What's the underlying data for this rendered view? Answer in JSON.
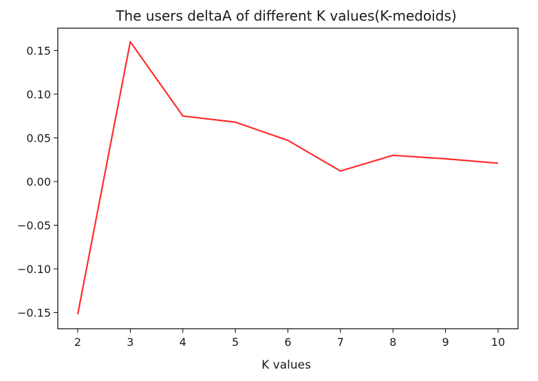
{
  "chart_data": {
    "type": "line",
    "title": "The users deltaA of different K values(K-medoids)",
    "xlabel": "K values",
    "ylabel": "",
    "xlim": [
      1.62,
      10.38
    ],
    "ylim": [
      -0.1685,
      0.1755
    ],
    "xticks": [
      2,
      3,
      4,
      5,
      6,
      7,
      8,
      9,
      10
    ],
    "xtick_labels": [
      "2",
      "3",
      "4",
      "5",
      "6",
      "7",
      "8",
      "9",
      "10"
    ],
    "yticks": [
      -0.15,
      -0.1,
      -0.05,
      0.0,
      0.05,
      0.1,
      0.15
    ],
    "ytick_labels": [
      "−0.15",
      "−0.10",
      "−0.05",
      "0.00",
      "0.05",
      "0.10",
      "0.15"
    ],
    "grid": false,
    "series": [
      {
        "color": "#ff2a2a",
        "x": [
          2,
          3,
          4,
          5,
          6,
          7,
          8,
          9,
          10
        ],
        "values": [
          -0.152,
          0.16,
          0.075,
          0.068,
          0.047,
          0.012,
          0.03,
          0.026,
          0.021
        ]
      }
    ]
  }
}
